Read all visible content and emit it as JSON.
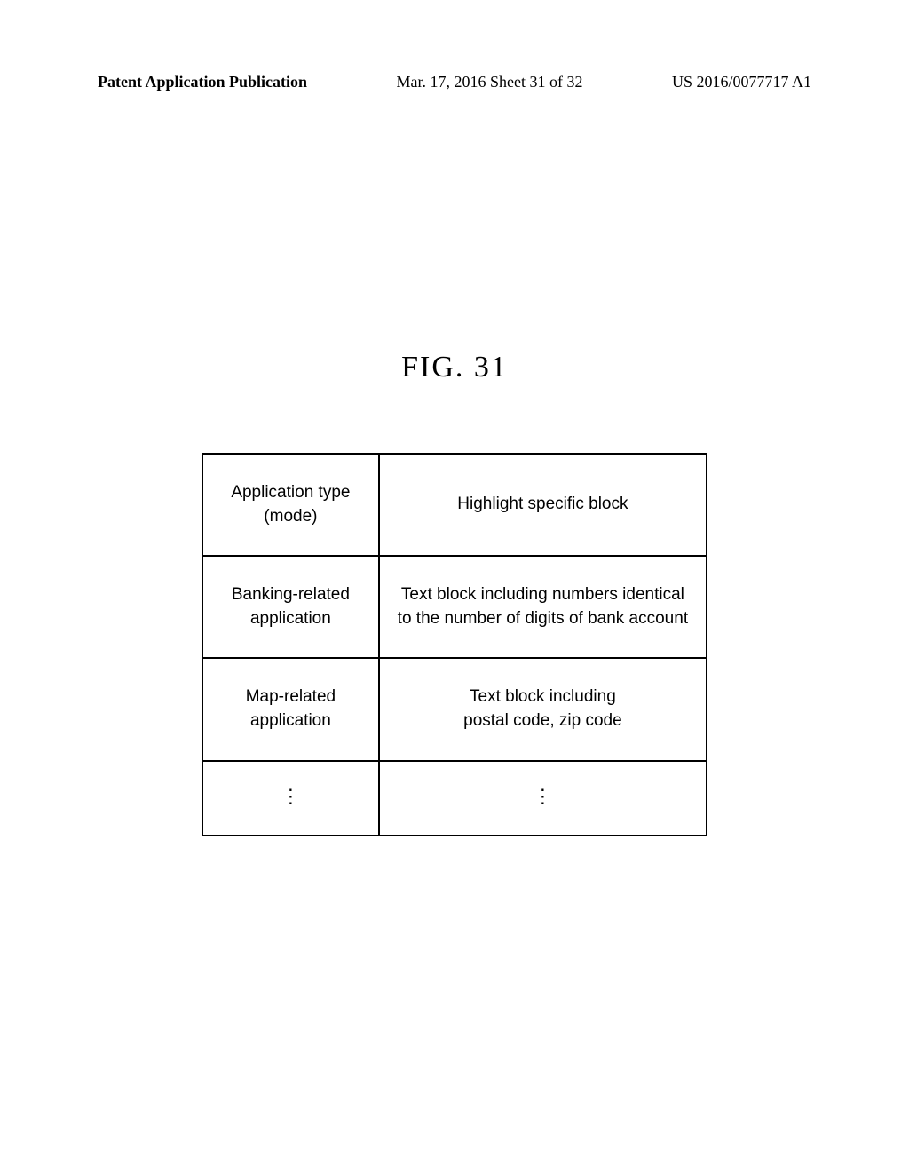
{
  "header": {
    "left": "Patent Application Publication",
    "center": "Mar. 17, 2016  Sheet 31 of 32",
    "right": "US 2016/0077717 A1"
  },
  "figure": {
    "label": "FIG. 31"
  },
  "table": {
    "type": "table",
    "columns": [
      "Application type (mode)",
      "Highlight specific block"
    ],
    "rows": [
      {
        "col1_line1": "Application type",
        "col1_line2": "(mode)",
        "col2_line1": "Highlight specific block",
        "col2_line2": ""
      },
      {
        "col1_line1": "Banking-related",
        "col1_line2": "application",
        "col2_line1": "Text block including numbers identical",
        "col2_line2": "to the number of digits of bank account"
      },
      {
        "col1_line1": "Map-related",
        "col1_line2": "application",
        "col2_line1": "Text block including",
        "col2_line2": "postal code, zip code"
      }
    ],
    "border_color": "#000000",
    "background_color": "#ffffff",
    "font_family": "Arial",
    "font_size": 19,
    "header_font_size": 19,
    "col_widths": [
      "35%",
      "65%"
    ]
  }
}
